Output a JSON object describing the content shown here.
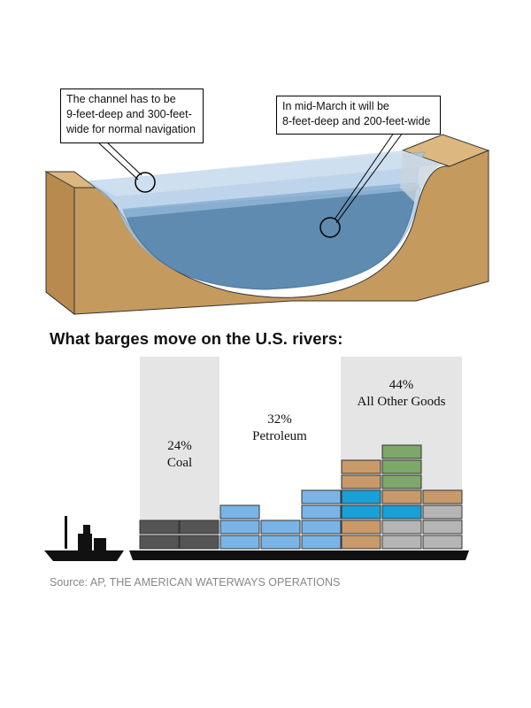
{
  "callouts": {
    "normal": {
      "lines": [
        "The channel has to be",
        "9-feet-deep and 300-feet-",
        "wide for normal navigation"
      ]
    },
    "march": {
      "lines": [
        "In mid-March it will be",
        "8-feet-deep and 200-feet-wide"
      ]
    }
  },
  "chart_title": "What barges move on the U.S. rivers:",
  "chart_data": {
    "type": "bar",
    "categories": [
      "Coal",
      "Petroleum",
      "All Other Goods"
    ],
    "values": [
      24,
      32,
      44
    ],
    "value_labels": [
      "24%",
      "32%",
      "44%"
    ],
    "unit": "%"
  },
  "colors": {
    "coal": "#555555",
    "petroleum": "#7ab4e6",
    "other_tan": "#c89a6a",
    "other_blue": "#1a9fd6",
    "other_gray": "#b5b5b5",
    "other_green": "#7ea76a",
    "soil": "#c49a5e",
    "water": "#5d8bb5"
  },
  "source": "Source: AP, THE AMERICAN WATERWAYS OPERATIONS"
}
